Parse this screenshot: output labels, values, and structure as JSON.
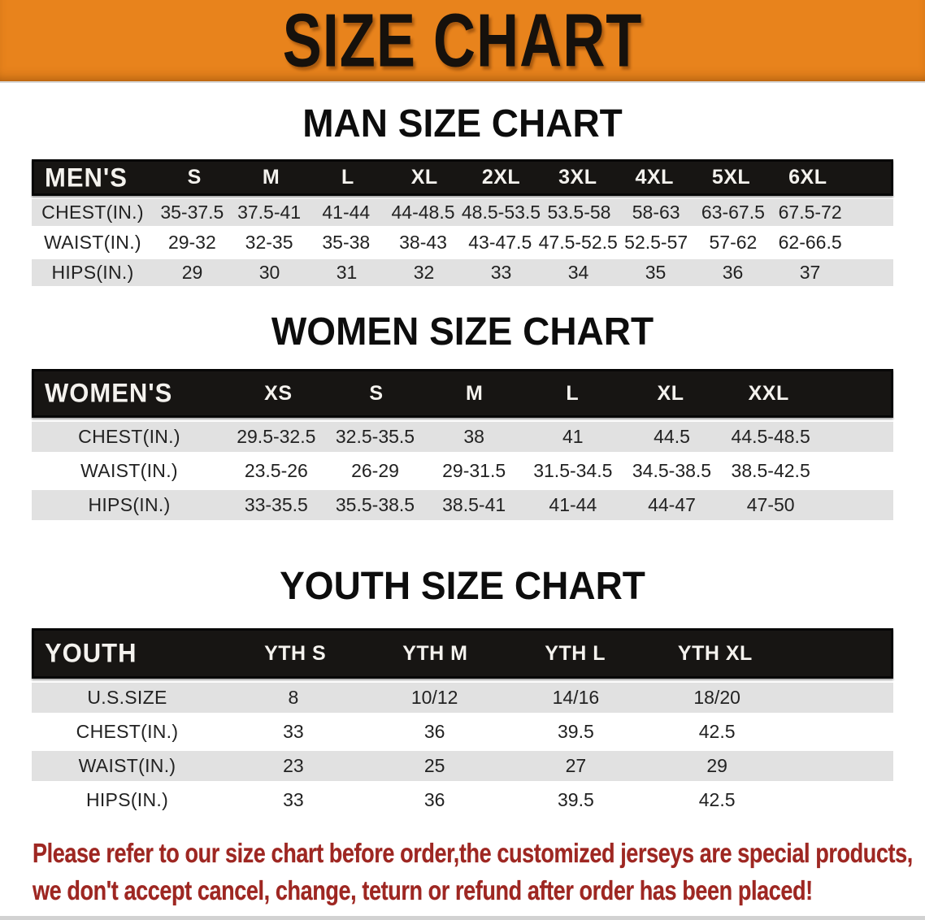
{
  "banner": {
    "title": "SIZE CHART",
    "background_color": "#e8831c",
    "text_color": "#16110c"
  },
  "sections": [
    {
      "key": "mens",
      "heading": "MAN SIZE CHART",
      "table": {
        "label": "MEN'S",
        "columns": [
          "S",
          "M",
          "L",
          "XL",
          "2XL",
          "3XL",
          "4XL",
          "5XL",
          "6XL"
        ],
        "rows": [
          {
            "label": "CHEST(IN.)",
            "values": [
              "35-37.5",
              "37.5-41",
              "41-44",
              "44-48.5",
              "48.5-53.5",
              "53.5-58",
              "58-63",
              "63-67.5",
              "67.5-72"
            ]
          },
          {
            "label": "WAIST(IN.)",
            "values": [
              "29-32",
              "32-35",
              "35-38",
              "38-43",
              "43-47.5",
              "47.5-52.5",
              "52.5-57",
              "57-62",
              "62-66.5"
            ]
          },
          {
            "label": "HIPS(IN.)",
            "values": [
              "29",
              "30",
              "31",
              "32",
              "33",
              "34",
              "35",
              "36",
              "37"
            ]
          }
        ]
      }
    },
    {
      "key": "womens",
      "heading": "WOMEN SIZE CHART",
      "table": {
        "label": "WOMEN'S",
        "columns": [
          "XS",
          "S",
          "M",
          "L",
          "XL",
          "XXL"
        ],
        "rows": [
          {
            "label": "CHEST(IN.)",
            "values": [
              "29.5-32.5",
              "32.5-35.5",
              "38",
              "41",
              "44.5",
              "44.5-48.5"
            ]
          },
          {
            "label": "WAIST(IN.)",
            "values": [
              "23.5-26",
              "26-29",
              "29-31.5",
              "31.5-34.5",
              "34.5-38.5",
              "38.5-42.5"
            ]
          },
          {
            "label": "HIPS(IN.)",
            "values": [
              "33-35.5",
              "35.5-38.5",
              "38.5-41",
              "41-44",
              "44-47",
              "47-50"
            ]
          }
        ]
      }
    },
    {
      "key": "youth",
      "heading": "YOUTH SIZE CHART",
      "table": {
        "label": "YOUTH",
        "columns": [
          "YTH S",
          "YTH M",
          "YTH L",
          "YTH XL"
        ],
        "rows": [
          {
            "label": "U.S.SIZE",
            "values": [
              "8",
              "10/12",
              "14/16",
              "18/20"
            ]
          },
          {
            "label": "CHEST(IN.)",
            "values": [
              "33",
              "36",
              "39.5",
              "42.5"
            ]
          },
          {
            "label": "WAIST(IN.)",
            "values": [
              "23",
              "25",
              "27",
              "29"
            ]
          },
          {
            "label": "HIPS(IN.)",
            "values": [
              "33",
              "36",
              "39.5",
              "42.5"
            ]
          }
        ]
      }
    }
  ],
  "footer": {
    "lines": [
      "Please refer to our size chart before order,the customized jerseys are special products,",
      "we don't accept cancel, change, teturn or refund after order has been placed!"
    ],
    "text_color": "#9e2722"
  },
  "colors": {
    "banner_orange": "#e8831c",
    "table_header_black": "#171513",
    "row_shade_gray": "#e1e1e1",
    "disclaimer_red": "#9e2722"
  }
}
